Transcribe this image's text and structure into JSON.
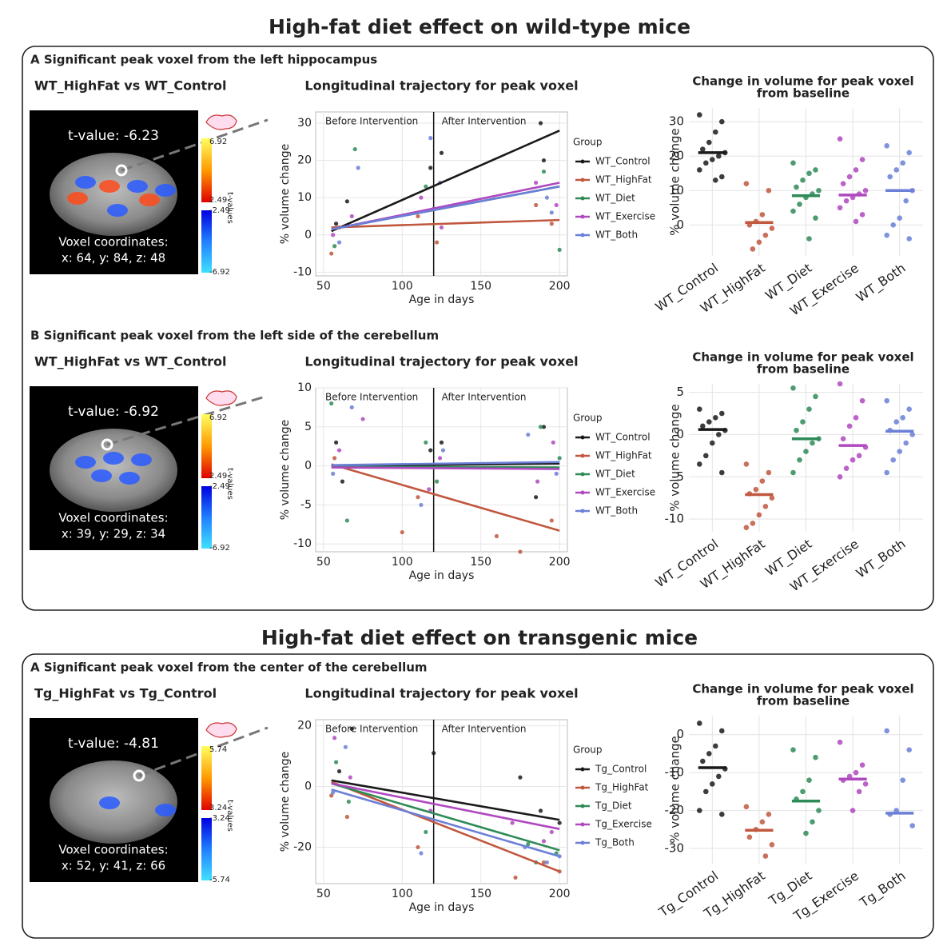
{
  "titles": [
    "High-fat diet effect on wild-type mice",
    "High-fat diet effect on transgenic mice"
  ],
  "panels": [
    {
      "section": "A Significant peak voxel from the left hippocampus",
      "comparison": "WT_HighFat vs WT_Control",
      "t_value": "t-value: -6.23",
      "voxel_coordinates": [
        "Voxel coordinates:",
        "x: 64,  y: 84, z: 48"
      ],
      "colorbar_ticks": [
        "6.92",
        "2.49",
        "-2.49",
        "-6.92"
      ],
      "colorbar_label": "t-values"
    },
    {
      "section": "B Significant peak voxel from the left side of  the cerebellum",
      "comparison": "WT_HighFat vs WT_Control",
      "t_value": "t-value: -6.92",
      "voxel_coordinates": [
        "Voxel coordinates:",
        "x: 39,  y: 29, z: 34"
      ],
      "colorbar_ticks": [
        "6.92",
        "2.49",
        "-2.49",
        "-6.92"
      ],
      "colorbar_label": "t-values"
    },
    {
      "section": "A Significant peak voxel from the center of  the cerebellum",
      "comparison": "Tg_HighFat vs Tg_Control",
      "t_value": "t-value: -4.81",
      "voxel_coordinates": [
        "Voxel coordinates:",
        "x: 52,  y: 41, z: 66"
      ],
      "colorbar_ticks": [
        "5.74",
        "3.24",
        "-3.24",
        "-5.74"
      ],
      "colorbar_label": "t-values"
    }
  ],
  "chart_data": [
    {
      "type": "line",
      "title": "Longitudinal trajectory for peak voxel",
      "x_label": "Age in days",
      "y_label": "% volume change",
      "annotations": [
        "Before Intervention",
        "After Intervention"
      ],
      "intervention_x": 120,
      "legend_title": "Group",
      "grid": true,
      "xlim": [
        45,
        205
      ],
      "xticks": [
        50,
        100,
        150,
        200
      ],
      "ylim": [
        -11,
        33
      ],
      "yticks": [
        -10,
        0,
        10,
        20,
        30
      ],
      "series": [
        {
          "name": "WT_Control",
          "color": "#1a1a1a",
          "x": [
            55,
            200
          ],
          "values": [
            1,
            28
          ],
          "points_x": [
            58,
            65,
            118,
            125,
            188,
            190
          ],
          "points_y": [
            3,
            9,
            18,
            22,
            30,
            20
          ]
        },
        {
          "name": "WT_HighFat",
          "color": "#c0573e",
          "x": [
            55,
            200
          ],
          "values": [
            2,
            4
          ],
          "points_x": [
            55,
            60,
            110,
            122,
            185,
            195
          ],
          "points_y": [
            -5,
            2,
            5,
            -2,
            8,
            3
          ]
        },
        {
          "name": "WT_Diet",
          "color": "#2e8b57",
          "x": [
            55,
            200
          ],
          "values": [
            1.5,
            13
          ],
          "points_x": [
            57,
            70,
            115,
            120,
            190,
            200
          ],
          "points_y": [
            -3,
            23,
            13,
            7,
            17,
            -4
          ]
        },
        {
          "name": "WT_Exercise",
          "color": "#b048c0",
          "x": [
            55,
            200
          ],
          "values": [
            1.5,
            14
          ],
          "points_x": [
            56,
            68,
            112,
            125,
            185,
            198
          ],
          "points_y": [
            0,
            5,
            10,
            2,
            14,
            8
          ]
        },
        {
          "name": "WT_Both",
          "color": "#6b7fd7",
          "x": [
            55,
            200
          ],
          "values": [
            1.5,
            13
          ],
          "points_x": [
            60,
            72,
            118,
            124,
            192,
            195
          ],
          "points_y": [
            -2,
            18,
            26,
            14,
            10,
            6
          ]
        }
      ]
    },
    {
      "type": "strip",
      "title": [
        "Change in volume for peak voxel",
        "from baseline"
      ],
      "y_label": "% volume change",
      "grid": true,
      "ylim": [
        -9,
        34
      ],
      "yticks": [
        0,
        10,
        20,
        30
      ],
      "categories": [
        "WT_Control",
        "WT_HighFat",
        "WT_Diet",
        "WT_Exercise",
        "WT_Both"
      ],
      "colors": [
        "#1a1a1a",
        "#c0573e",
        "#2e8b57",
        "#b048c0",
        "#6b7fd7"
      ],
      "points": [
        [
          32,
          30,
          27,
          24,
          22,
          21,
          20,
          19,
          18,
          16,
          14,
          13
        ],
        [
          12,
          10,
          3,
          1,
          0,
          -1,
          -3,
          -5,
          -7
        ],
        [
          18,
          16,
          15,
          13,
          11,
          10,
          9,
          8,
          6,
          4,
          2,
          -4
        ],
        [
          25,
          19,
          16,
          14,
          12,
          10,
          9,
          8,
          7,
          5,
          3,
          1
        ],
        [
          23,
          21,
          18,
          16,
          14,
          10,
          7,
          2,
          0,
          -3,
          -4
        ]
      ],
      "medians": [
        21,
        0.7,
        8.5,
        8.7,
        10
      ]
    },
    {
      "type": "line",
      "title": "Longitudinal trajectory for peak voxel",
      "x_label": "Age in days",
      "y_label": "% volume change",
      "annotations": [
        "Before Intervention",
        "After Intervention"
      ],
      "intervention_x": 120,
      "legend_title": "Group",
      "grid": true,
      "xlim": [
        45,
        205
      ],
      "xticks": [
        50,
        100,
        150,
        200
      ],
      "ylim": [
        -11,
        10
      ],
      "yticks": [
        -10,
        -5,
        0,
        5,
        10
      ],
      "series": [
        {
          "name": "WT_Control",
          "color": "#1a1a1a",
          "x": [
            55,
            200
          ],
          "values": [
            0,
            0.3
          ],
          "points_x": [
            58,
            62,
            118,
            125,
            185,
            190
          ],
          "points_y": [
            3,
            -2,
            2,
            3,
            -4,
            5
          ]
        },
        {
          "name": "WT_HighFat",
          "color": "#c0573e",
          "x": [
            55,
            200
          ],
          "values": [
            0.2,
            -8.3
          ],
          "points_x": [
            57,
            100,
            110,
            160,
            175,
            195
          ],
          "points_y": [
            1,
            -8.5,
            -4,
            -9,
            -11,
            -7
          ]
        },
        {
          "name": "WT_Diet",
          "color": "#2e8b57",
          "x": [
            55,
            200
          ],
          "values": [
            -0.1,
            -0.2
          ],
          "points_x": [
            55,
            65,
            115,
            122,
            188,
            200
          ],
          "points_y": [
            8,
            -7,
            3,
            -2,
            5,
            1
          ]
        },
        {
          "name": "WT_Exercise",
          "color": "#b048c0",
          "x": [
            55,
            200
          ],
          "values": [
            -0.2,
            -0.4
          ],
          "points_x": [
            60,
            75,
            117,
            124,
            186,
            196
          ],
          "points_y": [
            2,
            6,
            -3,
            1,
            -2,
            3
          ]
        },
        {
          "name": "WT_Both",
          "color": "#6b7fd7",
          "x": [
            55,
            200
          ],
          "values": [
            0.1,
            0.5
          ],
          "points_x": [
            56,
            68,
            112,
            126,
            180,
            198
          ],
          "points_y": [
            -1,
            7.5,
            -5,
            2,
            4,
            -1
          ]
        }
      ]
    },
    {
      "type": "strip",
      "title": [
        "Change in volume for peak voxel",
        "from baseline"
      ],
      "y_label": "% volume change",
      "grid": true,
      "ylim": [
        -11.5,
        6
      ],
      "yticks": [
        -10,
        -5,
        0,
        5
      ],
      "categories": [
        "WT_Control",
        "WT_HighFat",
        "WT_Diet",
        "WT_Exercise",
        "WT_Both"
      ],
      "colors": [
        "#1a1a1a",
        "#c0573e",
        "#2e8b57",
        "#b048c0",
        "#6b7fd7"
      ],
      "points": [
        [
          3,
          2.5,
          2,
          1.5,
          1,
          0.5,
          0,
          -1,
          -2.5,
          -3.5,
          -4.5
        ],
        [
          -3.5,
          -4.5,
          -5.5,
          -6.5,
          -7,
          -7.5,
          -8.5,
          -9.5,
          -10.5,
          -11
        ],
        [
          5.5,
          4.5,
          3,
          1.5,
          0.5,
          -0.5,
          -1,
          -2,
          -3,
          -4.5
        ],
        [
          6,
          4,
          2,
          1,
          -0.5,
          -1.5,
          -2.5,
          -3,
          -4,
          -5
        ],
        [
          4,
          3,
          2,
          1.5,
          0.5,
          0,
          -1,
          -2,
          -3,
          -4.5
        ]
      ],
      "medians": [
        0.6,
        -7.1,
        -0.5,
        -1.3,
        0.4
      ]
    },
    {
      "type": "line",
      "title": "Longitudinal trajectory for peak voxel",
      "x_label": "Age in days",
      "y_label": "% volume change",
      "annotations": [
        "Before Intervention",
        "After Intervention"
      ],
      "intervention_x": 120,
      "legend_title": "Group",
      "grid": true,
      "xlim": [
        45,
        205
      ],
      "xticks": [
        50,
        100,
        150,
        200
      ],
      "ylim": [
        -32,
        22
      ],
      "yticks": [
        -20,
        0,
        20
      ],
      "series": [
        {
          "name": "Tg_Control",
          "color": "#1a1a1a",
          "x": [
            55,
            200
          ],
          "values": [
            2,
            -11
          ],
          "points_x": [
            60,
            68,
            120,
            175,
            188,
            200
          ],
          "points_y": [
            5,
            19,
            11,
            3,
            -8,
            -12
          ]
        },
        {
          "name": "Tg_HighFat",
          "color": "#c0573e",
          "x": [
            55,
            200
          ],
          "values": [
            1.5,
            -28
          ],
          "points_x": [
            55,
            65,
            110,
            172,
            190,
            200
          ],
          "points_y": [
            -3,
            -10,
            -20,
            -30,
            -25,
            -28
          ]
        },
        {
          "name": "Tg_Diet",
          "color": "#2e8b57",
          "x": [
            55,
            200
          ],
          "values": [
            1,
            -21
          ],
          "points_x": [
            58,
            66,
            115,
            180,
            185,
            198
          ],
          "points_y": [
            8,
            -5,
            -15,
            -19,
            -25,
            -22
          ]
        },
        {
          "name": "Tg_Exercise",
          "color": "#b048c0",
          "x": [
            55,
            200
          ],
          "values": [
            1,
            -14
          ],
          "points_x": [
            57,
            67,
            118,
            170,
            190,
            195
          ],
          "points_y": [
            16,
            3,
            -8,
            -12,
            -18,
            -15
          ]
        },
        {
          "name": "Tg_Both",
          "color": "#6b7fd7",
          "x": [
            55,
            200
          ],
          "values": [
            -1,
            -23
          ],
          "points_x": [
            56,
            64,
            112,
            178,
            192,
            200
          ],
          "points_y": [
            -2,
            13,
            -22,
            -20,
            -25,
            -23
          ]
        }
      ]
    },
    {
      "type": "strip",
      "title": [
        "Change in volume for peak voxel",
        "from baseline"
      ],
      "y_label": "% volume change",
      "grid": true,
      "ylim": [
        -34,
        5
      ],
      "yticks": [
        -30,
        -20,
        -10,
        0
      ],
      "categories": [
        "Tg_Control",
        "Tg_HighFat",
        "Tg_Diet",
        "Tg_Exercise",
        "Tg_Both"
      ],
      "colors": [
        "#1a1a1a",
        "#c0573e",
        "#2e8b57",
        "#b048c0",
        "#6b7fd7"
      ],
      "points": [
        [
          3,
          1,
          -3,
          -5,
          -7,
          -9,
          -11,
          -13,
          -15,
          -20,
          -21
        ],
        [
          -19,
          -21,
          -23,
          -25,
          -27,
          -29,
          -32
        ],
        [
          -4,
          -6,
          -12,
          -15,
          -17,
          -20,
          -23,
          -26
        ],
        [
          -2,
          -8,
          -10,
          -11,
          -12,
          -13,
          -15,
          -20
        ],
        [
          1,
          -4,
          -12,
          -20,
          -21,
          -24
        ]
      ],
      "medians": [
        -8.7,
        -25.2,
        -17.5,
        -11.7,
        -20.7
      ]
    }
  ]
}
